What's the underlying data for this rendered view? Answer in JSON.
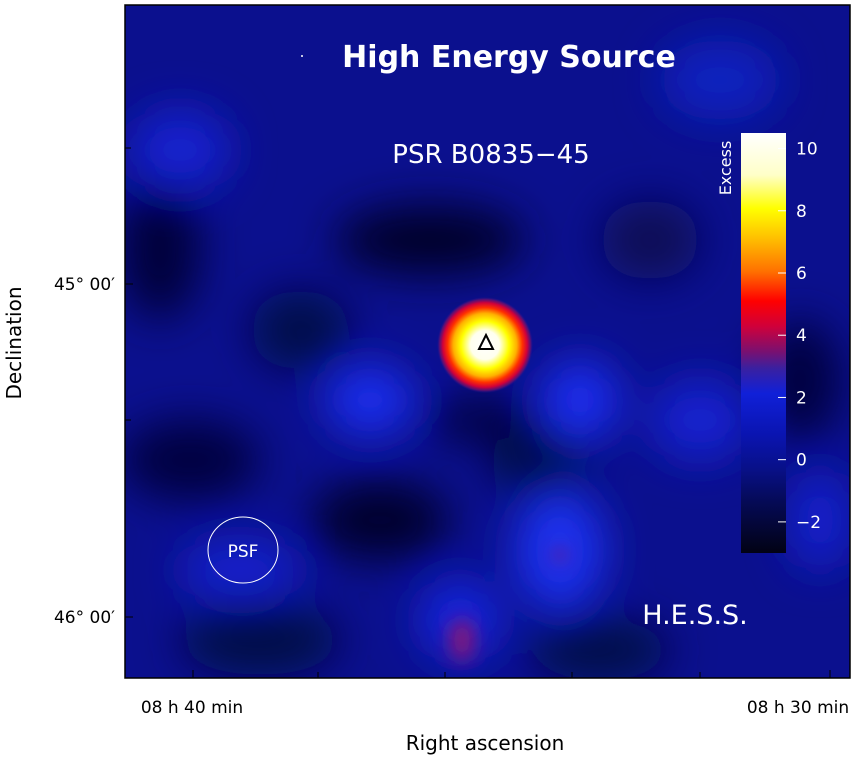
{
  "chart_data": {
    "type": "heatmap",
    "title": "High Energy Source",
    "subtitle": "PSR B0835−45",
    "xlabel": "Right ascension",
    "ylabel": "Declination",
    "x_ticks": [
      "08 h 40 min",
      "08 h 30 min"
    ],
    "y_ticks": [
      "45° 00′",
      "46° 00′"
    ],
    "colorbar": {
      "label": "Excess",
      "ticks": [
        10,
        8,
        6,
        4,
        2,
        0,
        -2
      ],
      "range": [
        -3,
        10.5
      ]
    },
    "annotations": {
      "psf_label": "PSF",
      "instrument": "H.E.S.S."
    },
    "source": {
      "marker": "triangle",
      "peak_excess": 10.5
    },
    "colors": {
      "background": "#0a0f8c",
      "dark": "#02021e",
      "hot_core": "#ffffff",
      "yellow": "#ffff00",
      "red": "#ff0000",
      "purple": "#6a1a6e"
    }
  }
}
